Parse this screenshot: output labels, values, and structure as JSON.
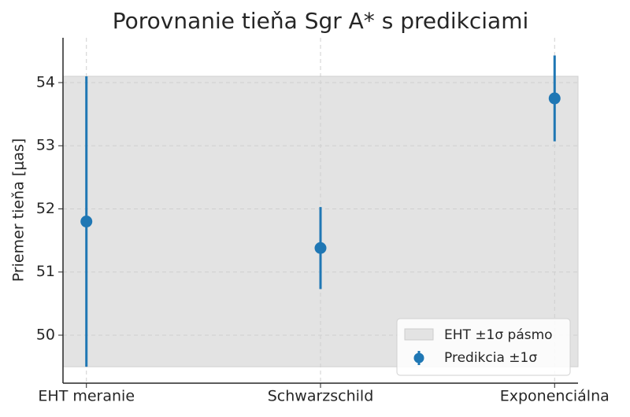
{
  "chart_data": {
    "type": "errorbar",
    "title": "Porovnanie tieňa Sgr A* s predikciami",
    "y_label": "Priemer tieňa [μas]",
    "categories": [
      "EHT meranie",
      "Schwarzschild",
      "Exponenciálna"
    ],
    "series": [
      {
        "name": "Predikcia ±1σ",
        "color": "#1f77b4",
        "values": [
          51.8,
          51.38,
          53.75
        ],
        "errors": [
          2.3,
          0.65,
          0.68
        ]
      }
    ],
    "band": {
      "name": "EHT ±1σ pásmo",
      "low": 49.5,
      "high": 54.1,
      "color": "#e3e3e3"
    },
    "ylim": [
      49.24,
      54.71
    ],
    "yticks": [
      50,
      51,
      52,
      53,
      54
    ],
    "grid": true,
    "legend": "lower right"
  }
}
